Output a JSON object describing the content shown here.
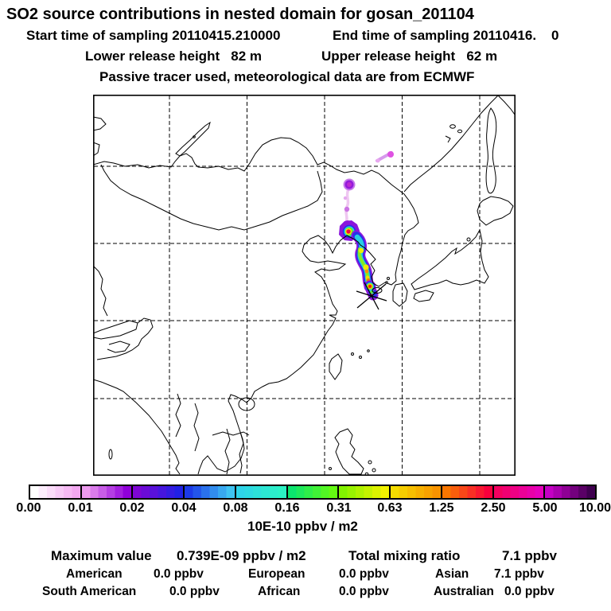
{
  "header": {
    "title": "SO2 source contributions in nested domain for gosan_201104",
    "start_time": "Start time of sampling 20110415.210000",
    "end_time": "End time of sampling 20110416.    0",
    "lower_release": "Lower release height   82 m",
    "upper_release": "Upper release height   62 m",
    "tracer_note": "Passive tracer used, meteorological data are from ECMWF"
  },
  "colorbar": {
    "unit": "10E-10 ppbv / m2",
    "tick_labels": [
      "0.00",
      "0.01",
      "0.02",
      "0.04",
      "0.08",
      "0.16",
      "0.31",
      "0.63",
      "1.25",
      "2.50",
      "5.00",
      "10.00"
    ],
    "segments": [
      {
        "from": "#FFFFFF",
        "to": "#F2A7F0"
      },
      {
        "from": "#ED9BEF",
        "to": "#9000DA"
      },
      {
        "from": "#7E06D4",
        "to": "#2121E4"
      },
      {
        "from": "#1C3AE8",
        "to": "#3FC3F2"
      },
      {
        "from": "#2ED3E9",
        "to": "#2BF3C4"
      },
      {
        "from": "#0BE46E",
        "to": "#64FA12"
      },
      {
        "from": "#82F200",
        "to": "#F2F200"
      },
      {
        "from": "#F4DC00",
        "to": "#F89300"
      },
      {
        "from": "#F87600",
        "to": "#F8003C"
      },
      {
        "from": "#F4005F",
        "to": "#E600BC"
      },
      {
        "from": "#C400C4",
        "to": "#3F004F"
      }
    ]
  },
  "stats": {
    "max_label": "Maximum value",
    "max_value": "0.739E-09 ppbv / m2",
    "total_label": "Total mixing ratio",
    "total_value": "7.1 ppbv",
    "regions": [
      {
        "label": "American",
        "value": "0.0 ppbv"
      },
      {
        "label": "European",
        "value": "0.0 ppbv"
      },
      {
        "label": "Asian",
        "value": "7.1 ppbv"
      },
      {
        "label": "South American",
        "value": "0.0 ppbv"
      },
      {
        "label": "African",
        "value": "0.0 ppbv"
      },
      {
        "label": "Australian",
        "value": "0.0 ppbv"
      }
    ]
  },
  "chart_data": {
    "type": "heatmap",
    "subtype": "geographic concentration plume map over East Asia",
    "title": "SO2 source contributions in nested domain for gosan_201104",
    "sampling": {
      "start": "20110415.210000",
      "end": "20110416.    0",
      "lower_release_height_m": 82,
      "upper_release_height_m": 62,
      "note": "Passive tracer used, meteorological data are from ECMWF"
    },
    "colorbar_levels": [
      0.0,
      0.01,
      0.02,
      0.04,
      0.08,
      0.16,
      0.31,
      0.63,
      1.25,
      2.5,
      5.0,
      10.0
    ],
    "colorbar_unit": "10E-10 ppbv / m2",
    "maximum_value": "0.739E-09 ppbv / m2",
    "total_mixing_ratio_ppbv": 7.1,
    "source_contributions_ppbv": {
      "American": 0.0,
      "European": 0.0,
      "Asian": 7.1,
      "South American": 0.0,
      "African": 0.0,
      "Australian": 0.0
    },
    "legend_position": "bottom",
    "grid": "dashed lat/lon gridlines, 5 vertical x 4 horizontal",
    "marker": "asterisk star at receptor (Gosan), plume extends north over Korea into NE China"
  }
}
